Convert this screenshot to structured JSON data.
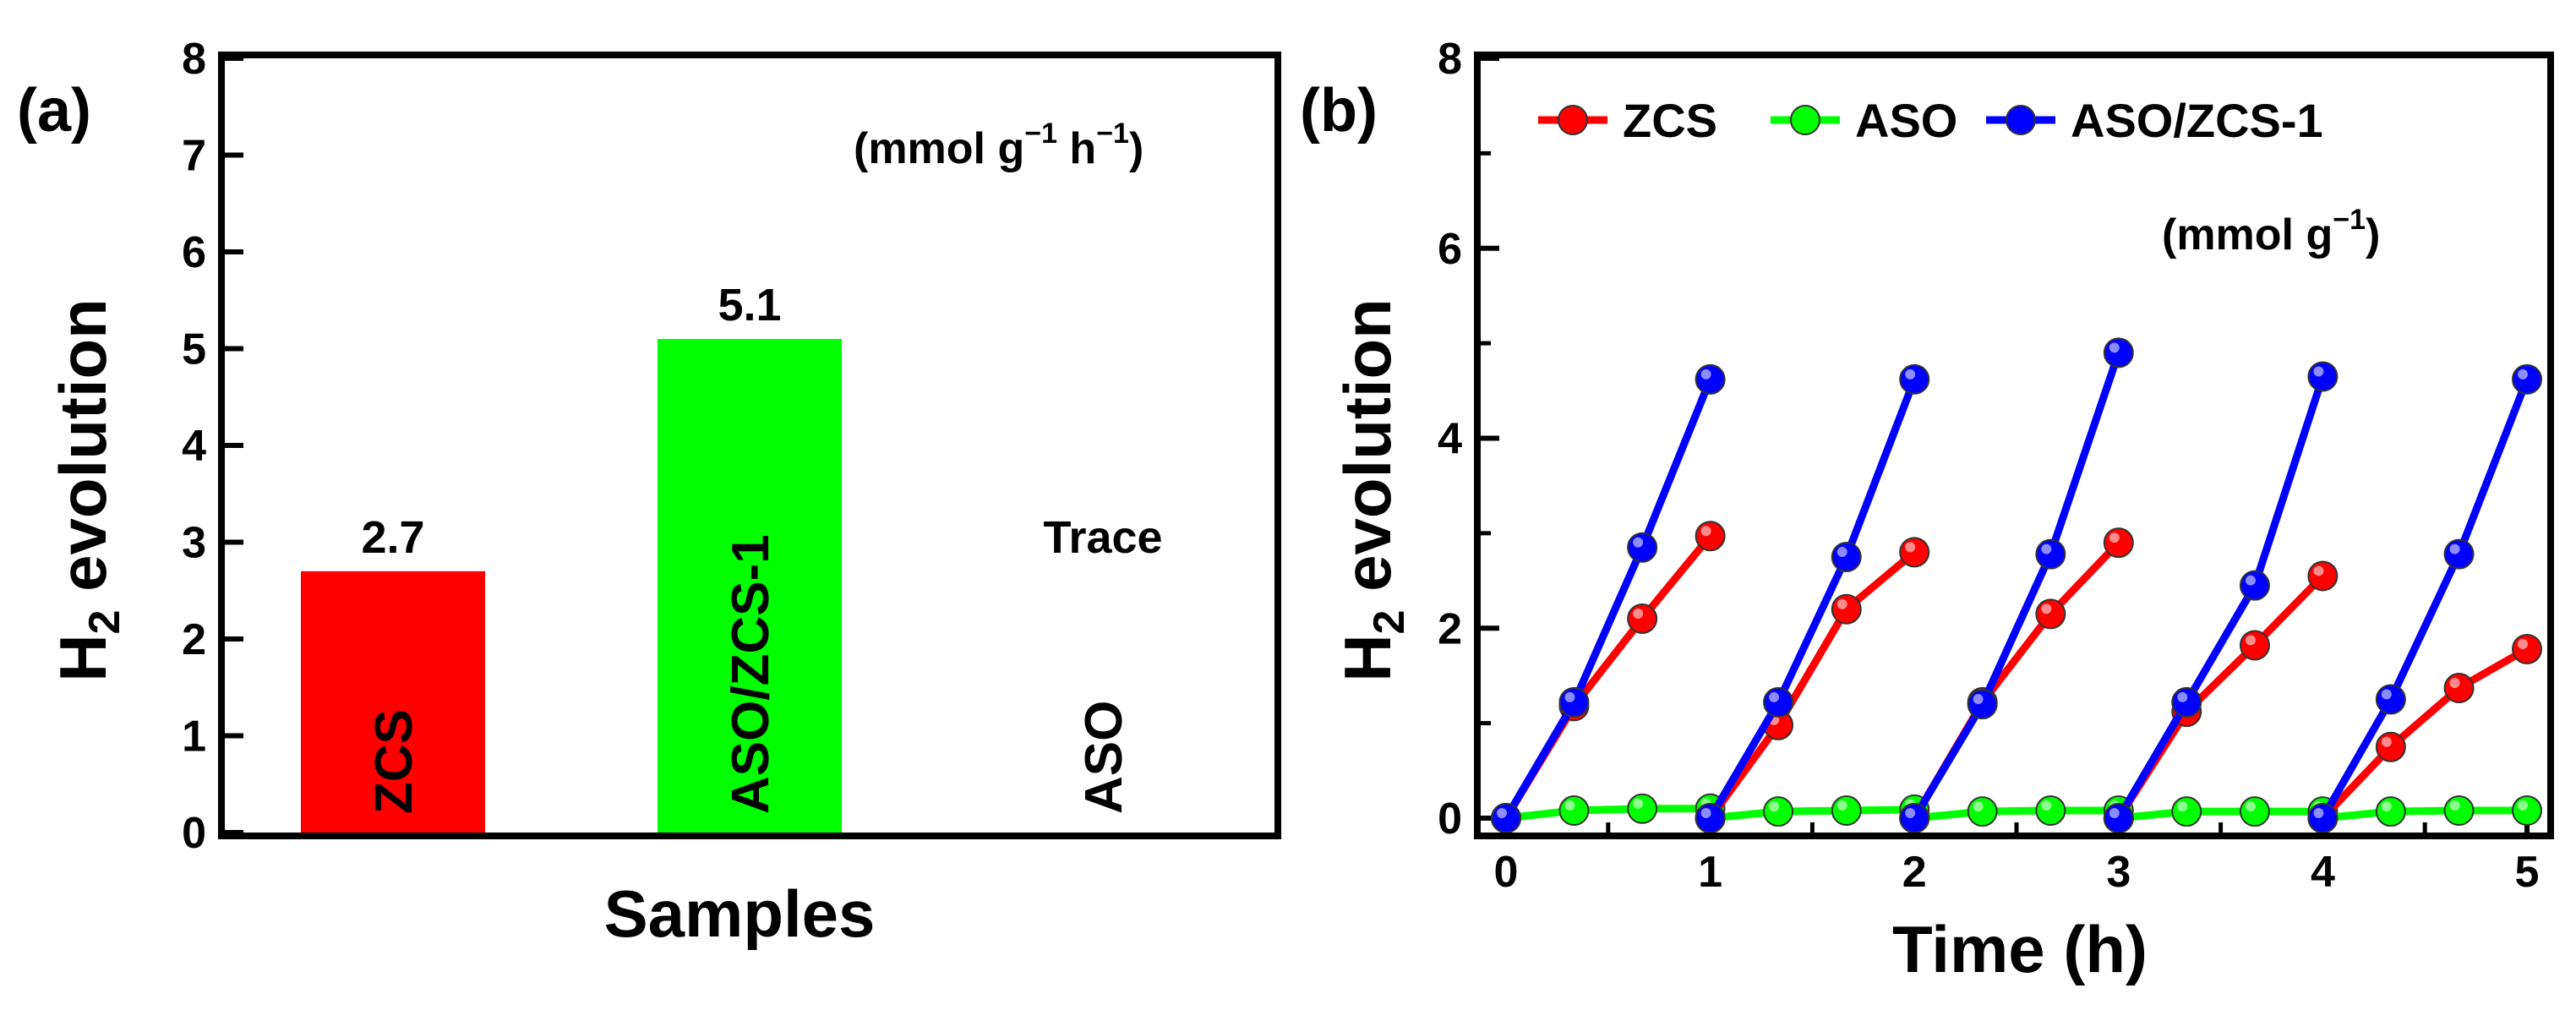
{
  "chart_data": [
    {
      "panel_label": "(a)",
      "type": "bar",
      "categories": [
        "ZCS",
        "ASO/ZCS-1",
        "ASO"
      ],
      "values": [
        2.7,
        5.1,
        0
      ],
      "value_labels": [
        "2.7",
        "5.1",
        "Trace"
      ],
      "colors": [
        "#ff0000",
        "#00ff00",
        "#ffffff"
      ],
      "xlabel": "Samples",
      "ylabel_main": "H",
      "ylabel_sub": "2",
      "ylabel_rest": " evolution",
      "unit_annotation": {
        "base": "(mmol g",
        "sup1": "−1",
        "mid": " h",
        "sup2": "−1",
        "close": ")"
      },
      "ylim": [
        0,
        8
      ],
      "yticks": [
        0,
        1,
        2,
        3,
        4,
        5,
        6,
        7,
        8
      ],
      "ytick_labels": [
        "0",
        "1",
        "2",
        "3",
        "4",
        "5",
        "6",
        "7",
        "8"
      ]
    },
    {
      "panel_label": "(b)",
      "type": "line",
      "xlabel": "Time (h)",
      "ylabel_main": "H",
      "ylabel_sub": "2",
      "ylabel_rest": " evolution",
      "unit_annotation": {
        "base": "(mmol g",
        "sup1": "−1",
        "close": ")"
      },
      "xlim": [
        0,
        5
      ],
      "ylim": [
        0,
        8
      ],
      "xticks": [
        0,
        1,
        2,
        3,
        4,
        5
      ],
      "xtick_labels": [
        "0",
        "1",
        "2",
        "3",
        "4",
        "5"
      ],
      "yticks": [
        0,
        2,
        4,
        6,
        8
      ],
      "ytick_labels": [
        "0",
        "2",
        "4",
        "6",
        "8"
      ],
      "legend_position": "top",
      "series": [
        {
          "name": "ZCS",
          "color": "#ff0000",
          "cycles": [
            [
              [
                0,
                0
              ],
              [
                0.333,
                1.18
              ],
              [
                0.667,
                2.1
              ],
              [
                1.0,
                2.97
              ]
            ],
            [
              [
                1.0,
                0
              ],
              [
                1.333,
                0.98
              ],
              [
                1.667,
                2.2
              ],
              [
                2.0,
                2.8
              ]
            ],
            [
              [
                2.0,
                0
              ],
              [
                2.333,
                1.22
              ],
              [
                2.667,
                2.15
              ],
              [
                3.0,
                2.9
              ]
            ],
            [
              [
                3.0,
                0
              ],
              [
                3.333,
                1.12
              ],
              [
                3.667,
                1.82
              ],
              [
                4.0,
                2.55
              ]
            ],
            [
              [
                4.0,
                0
              ],
              [
                4.333,
                0.75
              ],
              [
                4.667,
                1.37
              ],
              [
                5.0,
                1.78
              ]
            ]
          ]
        },
        {
          "name": "ASO",
          "color": "#00ff00",
          "cycles": [
            [
              [
                0,
                0
              ],
              [
                0.333,
                0.08
              ],
              [
                0.667,
                0.1
              ],
              [
                1.0,
                0.1
              ]
            ],
            [
              [
                1.0,
                0
              ],
              [
                1.333,
                0.07
              ],
              [
                1.667,
                0.08
              ],
              [
                2.0,
                0.09
              ]
            ],
            [
              [
                2.0,
                0
              ],
              [
                2.333,
                0.07
              ],
              [
                2.667,
                0.08
              ],
              [
                3.0,
                0.08
              ]
            ],
            [
              [
                3.0,
                0
              ],
              [
                3.333,
                0.07
              ],
              [
                3.667,
                0.07
              ],
              [
                4.0,
                0.07
              ]
            ],
            [
              [
                4.0,
                0
              ],
              [
                4.333,
                0.07
              ],
              [
                4.667,
                0.08
              ],
              [
                5.0,
                0.08
              ]
            ]
          ]
        },
        {
          "name": "ASO/ZCS-1",
          "color": "#0000ff",
          "cycles": [
            [
              [
                0,
                0
              ],
              [
                0.333,
                1.22
              ],
              [
                0.667,
                2.85
              ],
              [
                1.0,
                4.62
              ]
            ],
            [
              [
                1.0,
                0
              ],
              [
                1.333,
                1.22
              ],
              [
                1.667,
                2.75
              ],
              [
                2.0,
                4.62
              ]
            ],
            [
              [
                2.0,
                0
              ],
              [
                2.333,
                1.2
              ],
              [
                2.667,
                2.78
              ],
              [
                3.0,
                4.9
              ]
            ],
            [
              [
                3.0,
                0
              ],
              [
                3.333,
                1.22
              ],
              [
                3.667,
                2.45
              ],
              [
                4.0,
                4.65
              ]
            ],
            [
              [
                4.0,
                0
              ],
              [
                4.333,
                1.25
              ],
              [
                4.667,
                2.78
              ],
              [
                5.0,
                4.62
              ]
            ]
          ]
        }
      ]
    }
  ]
}
